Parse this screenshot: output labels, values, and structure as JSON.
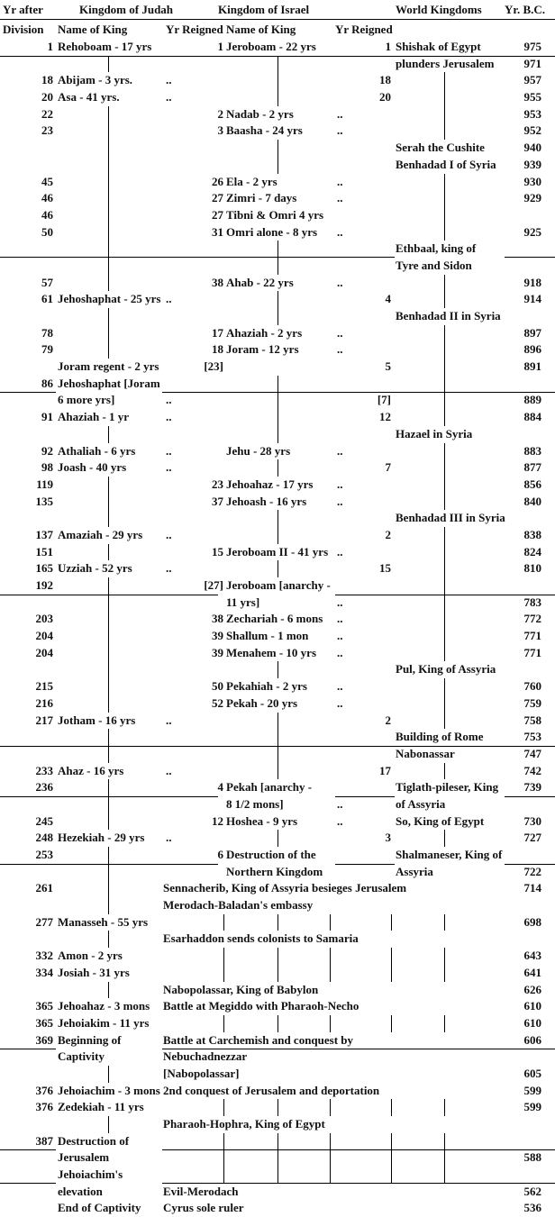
{
  "table": {
    "header": {
      "yr_after": "Yr after",
      "division": "Division",
      "judah": "Kingdom of Judah",
      "israel": "Kingdom of Israel",
      "world": "World Kingdoms",
      "bc": "Yr. B.C.",
      "name_of_king": "Name of King",
      "yr_reigned": "Yr Reigned"
    },
    "rows": [
      {
        "d": "1",
        "j": "Rehoboam - 17 yrs",
        "n": "1",
        "i": "Jeroboam - 22 yrs",
        "iy": "1",
        "w": "Shishak of Egypt",
        "bc": "975",
        "hr": true
      },
      {
        "w": "plunders Jerusalem",
        "bc": "971"
      },
      {
        "d": "18",
        "j": "Abijam - 3 yrs.",
        "jy": "..",
        "iy": "18",
        "bc": "957"
      },
      {
        "d": "20",
        "j": "Asa - 41 yrs.",
        "jy": "..",
        "iy": "20",
        "bc": "955"
      },
      {
        "d": "22",
        "n": "2",
        "i": "Nadab - 2 yrs",
        "iy": "..",
        "bc": "953"
      },
      {
        "d": "23",
        "n": "3",
        "i": "Baasha - 24 yrs",
        "iy": "..",
        "bc": "952"
      },
      {
        "w": "Serah the Cushite",
        "bc": "940"
      },
      {
        "w": "Benhadad I of Syria",
        "bc": "939"
      },
      {
        "d": "45",
        "n": "26",
        "i": "Ela - 2 yrs",
        "iy": "..",
        "bc": "930"
      },
      {
        "d": "46",
        "n": "27",
        "i": "Zimri - 7 days",
        "iy": "..",
        "bc": "929"
      },
      {
        "d": "46",
        "n": "27",
        "i": "Tibni & Omri 4 yrs"
      },
      {
        "d": "50",
        "n": "31",
        "i": "Omri alone - 8 yrs",
        "iy": "..",
        "bc": "925"
      },
      {
        "w": "Ethbaal, king of",
        "hr": true,
        "sk": [
          "c6"
        ]
      },
      {
        "w": "Tyre and Sidon"
      },
      {
        "d": "57",
        "n": "38",
        "i": "Ahab - 22 yrs",
        "iy": "..",
        "bc": "918"
      },
      {
        "d": "61",
        "j": "Jehoshaphat - 25 yrs",
        "jy": "..",
        "iy": "4",
        "bc": "914"
      },
      {
        "w": "Benhadad II in Syria"
      },
      {
        "d": "78",
        "n": "17",
        "i": "Ahaziah - 2 yrs",
        "iy": "..",
        "bc": "897"
      },
      {
        "d": "79",
        "n": "18",
        "i": "Joram - 12 yrs",
        "iy": "..",
        "bc": "896"
      },
      {
        "j": "Joram regent - 2 yrs",
        "n": "[23]",
        "iy": "5",
        "bc": "891"
      },
      {
        "d": "86",
        "j": "Jehoshaphat [Joram",
        "hr": true,
        "sk": [
          "c2"
        ]
      },
      {
        "j": "6 more yrs]",
        "jy": "..",
        "iy": "[7]",
        "bc": "889"
      },
      {
        "d": "91",
        "j": "Ahaziah - 1 yr",
        "jy": "..",
        "iy": "12",
        "bc": "884"
      },
      {
        "w": "Hazael in Syria"
      },
      {
        "d": "92",
        "j": "Athaliah - 6 yrs",
        "jy": "..",
        "i": "Jehu - 28 yrs",
        "iy": "..",
        "bc": "883"
      },
      {
        "d": "98",
        "j": "Joash - 40 yrs",
        "jy": "..",
        "iy": "7",
        "bc": "877"
      },
      {
        "d": "119",
        "n": "23",
        "i": "Jehoahaz - 17 yrs",
        "iy": "..",
        "bc": "856"
      },
      {
        "d": "135",
        "n": "37",
        "i": "Jehoash - 16 yrs",
        "iy": "..",
        "bc": "840"
      },
      {
        "w": "Benhadad III in Syria"
      },
      {
        "d": "137",
        "j": "Amaziah - 29 yrs",
        "jy": "..",
        "iy": "2",
        "bc": "838"
      },
      {
        "d": "151",
        "n": "15",
        "i": "Jeroboam II - 41 yrs",
        "iy": "..",
        "bc": "824"
      },
      {
        "d": "165",
        "j": "Uzziah - 52 yrs",
        "jy": "..",
        "iy": "15",
        "bc": "810"
      },
      {
        "d": "192",
        "n": "[27]",
        "i": "Jeroboam [anarchy -",
        "hr": true,
        "sk": [
          "c4"
        ]
      },
      {
        "i": "11 yrs]",
        "iy": "..",
        "bc": "783"
      },
      {
        "d": "203",
        "n": "38",
        "i": "Zechariah - 6 mons",
        "iy": "..",
        "bc": "772"
      },
      {
        "d": "204",
        "n": "39",
        "i": "Shallum - 1 mon",
        "iy": "..",
        "bc": "771"
      },
      {
        "d": "204",
        "n": "39",
        "i": "Menahem - 10 yrs",
        "iy": "..",
        "bc": "771"
      },
      {
        "w": "Pul, King of Assyria"
      },
      {
        "d": "215",
        "n": "50",
        "i": "Pekahiah - 2 yrs",
        "iy": "..",
        "bc": "760"
      },
      {
        "d": "216",
        "n": "52",
        "i": "Pekah - 20 yrs",
        "iy": "..",
        "bc": "759"
      },
      {
        "d": "217",
        "j": "Jotham - 16 yrs",
        "jy": "..",
        "iy": "2",
        "bc": "758"
      },
      {
        "w": "Building of Rome",
        "bc": "753",
        "hr": true
      },
      {
        "w": "Nabonassar",
        "bc": "747"
      },
      {
        "d": "233",
        "j": "Ahaz - 16 yrs",
        "jy": "..",
        "iy": "17",
        "bc": "742"
      },
      {
        "d": "236",
        "n": "4",
        "i": "Pekah [anarchy -",
        "w": "Tiglath-pileser, King",
        "bc": "739",
        "hr": true,
        "sk": [
          "c4",
          "c6"
        ]
      },
      {
        "i": "8 1/2 mons]",
        "iy": "..",
        "w": "of Assyria"
      },
      {
        "d": "245",
        "n": "12",
        "i": "Hoshea - 9 yrs",
        "iy": "..",
        "w": "So, King of Egypt",
        "bc": "730"
      },
      {
        "d": "248",
        "j": "Hezekiah - 29 yrs",
        "jy": "..",
        "iy": "3",
        "bc": "727"
      },
      {
        "d": "253",
        "n": "6",
        "i": "Destruction of the",
        "w": "Shalmaneser, King of",
        "hr": true,
        "sk": [
          "c4",
          "c6"
        ]
      },
      {
        "i": "Northern Kingdom",
        "w": "Assyria",
        "bc": "722"
      },
      {
        "d": "261",
        "s": "Sennacherib, King of Assyria besieges Jerusalem",
        "bc": "714"
      },
      {
        "s": "Merodach-Baladan's embassy"
      },
      {
        "d": "277",
        "j": "Manasseh - 55 yrs",
        "bc": "698"
      },
      {
        "s": "Esarhaddon sends colonists to Samaria"
      },
      {
        "d": "332",
        "j": "Amon - 2 yrs",
        "bc": "643"
      },
      {
        "d": "334",
        "j": "Josiah - 31 yrs",
        "bc": "641"
      },
      {
        "s": "Nabopolassar, King of Babylon",
        "bc": "626"
      },
      {
        "d": "365",
        "j": "Jehoahaz - 3 mons",
        "s": "Battle at Megiddo with Pharaoh-Necho",
        "bc": "610"
      },
      {
        "d": "365",
        "j": "Jehoiakim - 11 yrs",
        "bc": "610"
      },
      {
        "d": "369",
        "j": "Beginning of",
        "s": "Battle at Carchemish and conquest by",
        "bc": "606",
        "hr": true,
        "sk": [
          "c2"
        ]
      },
      {
        "j": "Captivity",
        "s": "Nebuchadnezzar"
      },
      {
        "s": "[Nabopolassar]",
        "bc": "605"
      },
      {
        "d": "376",
        "j": "Jehoiachim - 3 mons",
        "s": "2nd conquest of Jerusalem and deportation",
        "bc": "599"
      },
      {
        "d": "376",
        "j": "Zedekiah - 11 yrs",
        "bc": "599"
      },
      {
        "s": "Pharaoh-Hophra, King of Egypt"
      },
      {
        "d": "387",
        "j": "Destruction of",
        "hr": true,
        "sk": [
          "c2"
        ]
      },
      {
        "j": "Jerusalem",
        "bc": "588"
      },
      {
        "j": "Jehoiachim's",
        "hr": true,
        "sk": [
          "c2"
        ]
      },
      {
        "j": "elevation",
        "s": "Evil-Merodach",
        "bc": "562"
      },
      {
        "j": "End of Captivity",
        "s": "Cyrus sole ruler",
        "bc": "536"
      }
    ]
  }
}
